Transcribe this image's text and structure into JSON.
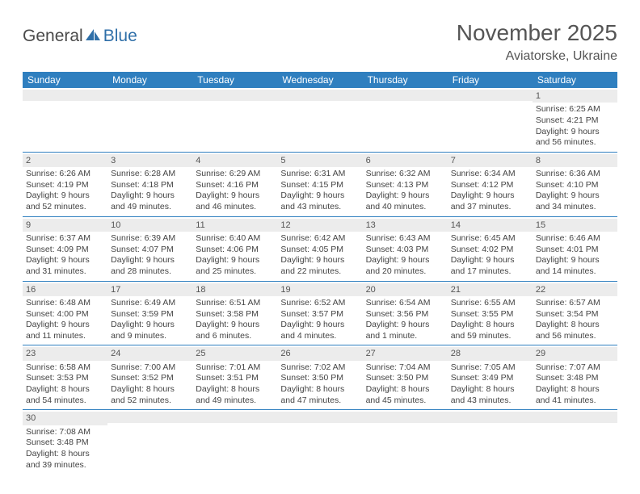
{
  "logo": {
    "part1": "General",
    "part2": "Blue"
  },
  "title": "November 2025",
  "location": "Aviatorske, Ukraine",
  "colors": {
    "header_bg": "#2f7fbf",
    "header_text": "#ffffff",
    "daynum_bg": "#ececec",
    "cell_border": "#2f7fbf",
    "text": "#444444",
    "logo_gray": "#4a4a4a",
    "logo_blue": "#2f6fa8"
  },
  "day_headers": [
    "Sunday",
    "Monday",
    "Tuesday",
    "Wednesday",
    "Thursday",
    "Friday",
    "Saturday"
  ],
  "weeks": [
    [
      {
        "n": "",
        "lines": []
      },
      {
        "n": "",
        "lines": []
      },
      {
        "n": "",
        "lines": []
      },
      {
        "n": "",
        "lines": []
      },
      {
        "n": "",
        "lines": []
      },
      {
        "n": "",
        "lines": []
      },
      {
        "n": "1",
        "lines": [
          "Sunrise: 6:25 AM",
          "Sunset: 4:21 PM",
          "Daylight: 9 hours and 56 minutes."
        ]
      }
    ],
    [
      {
        "n": "2",
        "lines": [
          "Sunrise: 6:26 AM",
          "Sunset: 4:19 PM",
          "Daylight: 9 hours and 52 minutes."
        ]
      },
      {
        "n": "3",
        "lines": [
          "Sunrise: 6:28 AM",
          "Sunset: 4:18 PM",
          "Daylight: 9 hours and 49 minutes."
        ]
      },
      {
        "n": "4",
        "lines": [
          "Sunrise: 6:29 AM",
          "Sunset: 4:16 PM",
          "Daylight: 9 hours and 46 minutes."
        ]
      },
      {
        "n": "5",
        "lines": [
          "Sunrise: 6:31 AM",
          "Sunset: 4:15 PM",
          "Daylight: 9 hours and 43 minutes."
        ]
      },
      {
        "n": "6",
        "lines": [
          "Sunrise: 6:32 AM",
          "Sunset: 4:13 PM",
          "Daylight: 9 hours and 40 minutes."
        ]
      },
      {
        "n": "7",
        "lines": [
          "Sunrise: 6:34 AM",
          "Sunset: 4:12 PM",
          "Daylight: 9 hours and 37 minutes."
        ]
      },
      {
        "n": "8",
        "lines": [
          "Sunrise: 6:36 AM",
          "Sunset: 4:10 PM",
          "Daylight: 9 hours and 34 minutes."
        ]
      }
    ],
    [
      {
        "n": "9",
        "lines": [
          "Sunrise: 6:37 AM",
          "Sunset: 4:09 PM",
          "Daylight: 9 hours and 31 minutes."
        ]
      },
      {
        "n": "10",
        "lines": [
          "Sunrise: 6:39 AM",
          "Sunset: 4:07 PM",
          "Daylight: 9 hours and 28 minutes."
        ]
      },
      {
        "n": "11",
        "lines": [
          "Sunrise: 6:40 AM",
          "Sunset: 4:06 PM",
          "Daylight: 9 hours and 25 minutes."
        ]
      },
      {
        "n": "12",
        "lines": [
          "Sunrise: 6:42 AM",
          "Sunset: 4:05 PM",
          "Daylight: 9 hours and 22 minutes."
        ]
      },
      {
        "n": "13",
        "lines": [
          "Sunrise: 6:43 AM",
          "Sunset: 4:03 PM",
          "Daylight: 9 hours and 20 minutes."
        ]
      },
      {
        "n": "14",
        "lines": [
          "Sunrise: 6:45 AM",
          "Sunset: 4:02 PM",
          "Daylight: 9 hours and 17 minutes."
        ]
      },
      {
        "n": "15",
        "lines": [
          "Sunrise: 6:46 AM",
          "Sunset: 4:01 PM",
          "Daylight: 9 hours and 14 minutes."
        ]
      }
    ],
    [
      {
        "n": "16",
        "lines": [
          "Sunrise: 6:48 AM",
          "Sunset: 4:00 PM",
          "Daylight: 9 hours and 11 minutes."
        ]
      },
      {
        "n": "17",
        "lines": [
          "Sunrise: 6:49 AM",
          "Sunset: 3:59 PM",
          "Daylight: 9 hours and 9 minutes."
        ]
      },
      {
        "n": "18",
        "lines": [
          "Sunrise: 6:51 AM",
          "Sunset: 3:58 PM",
          "Daylight: 9 hours and 6 minutes."
        ]
      },
      {
        "n": "19",
        "lines": [
          "Sunrise: 6:52 AM",
          "Sunset: 3:57 PM",
          "Daylight: 9 hours and 4 minutes."
        ]
      },
      {
        "n": "20",
        "lines": [
          "Sunrise: 6:54 AM",
          "Sunset: 3:56 PM",
          "Daylight: 9 hours and 1 minute."
        ]
      },
      {
        "n": "21",
        "lines": [
          "Sunrise: 6:55 AM",
          "Sunset: 3:55 PM",
          "Daylight: 8 hours and 59 minutes."
        ]
      },
      {
        "n": "22",
        "lines": [
          "Sunrise: 6:57 AM",
          "Sunset: 3:54 PM",
          "Daylight: 8 hours and 56 minutes."
        ]
      }
    ],
    [
      {
        "n": "23",
        "lines": [
          "Sunrise: 6:58 AM",
          "Sunset: 3:53 PM",
          "Daylight: 8 hours and 54 minutes."
        ]
      },
      {
        "n": "24",
        "lines": [
          "Sunrise: 7:00 AM",
          "Sunset: 3:52 PM",
          "Daylight: 8 hours and 52 minutes."
        ]
      },
      {
        "n": "25",
        "lines": [
          "Sunrise: 7:01 AM",
          "Sunset: 3:51 PM",
          "Daylight: 8 hours and 49 minutes."
        ]
      },
      {
        "n": "26",
        "lines": [
          "Sunrise: 7:02 AM",
          "Sunset: 3:50 PM",
          "Daylight: 8 hours and 47 minutes."
        ]
      },
      {
        "n": "27",
        "lines": [
          "Sunrise: 7:04 AM",
          "Sunset: 3:50 PM",
          "Daylight: 8 hours and 45 minutes."
        ]
      },
      {
        "n": "28",
        "lines": [
          "Sunrise: 7:05 AM",
          "Sunset: 3:49 PM",
          "Daylight: 8 hours and 43 minutes."
        ]
      },
      {
        "n": "29",
        "lines": [
          "Sunrise: 7:07 AM",
          "Sunset: 3:48 PM",
          "Daylight: 8 hours and 41 minutes."
        ]
      }
    ],
    [
      {
        "n": "30",
        "lines": [
          "Sunrise: 7:08 AM",
          "Sunset: 3:48 PM",
          "Daylight: 8 hours and 39 minutes."
        ]
      },
      {
        "n": "",
        "lines": []
      },
      {
        "n": "",
        "lines": []
      },
      {
        "n": "",
        "lines": []
      },
      {
        "n": "",
        "lines": []
      },
      {
        "n": "",
        "lines": []
      },
      {
        "n": "",
        "lines": []
      }
    ]
  ]
}
